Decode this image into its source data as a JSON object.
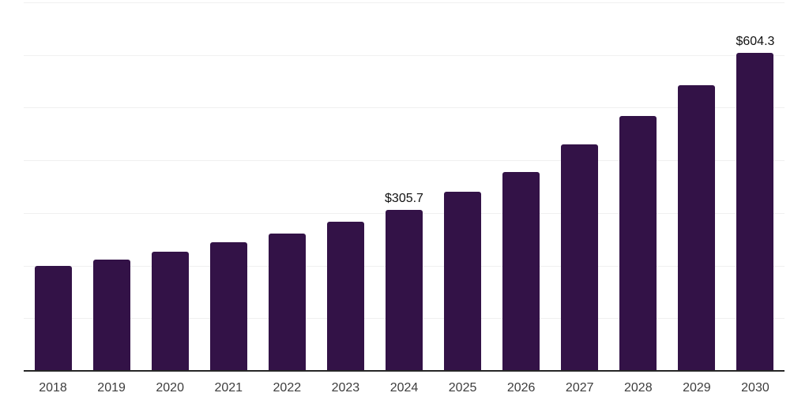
{
  "chart_data": {
    "type": "bar",
    "title": "",
    "xlabel": "",
    "ylabel": "",
    "categories": [
      "2018",
      "2019",
      "2020",
      "2021",
      "2022",
      "2023",
      "2024",
      "2025",
      "2026",
      "2027",
      "2028",
      "2029",
      "2030"
    ],
    "values": [
      199,
      212,
      227,
      244,
      261,
      283,
      305.7,
      340,
      378,
      430,
      484,
      543,
      604.3
    ],
    "data_labels": [
      "",
      "",
      "",
      "",
      "",
      "",
      "$305.7",
      "",
      "",
      "",
      "",
      "",
      "$604.3"
    ],
    "ylim": [
      0,
      700
    ],
    "gridline_step": 100,
    "grid": "horizontal-only",
    "y_axis_labels_visible": false,
    "legend": "none",
    "colors": {
      "bar": "#331247",
      "axis_line": "#262626",
      "gridline": "#f0f0f0",
      "tick_label": "#3d3d3d",
      "data_label": "#111111",
      "background": "#ffffff"
    }
  }
}
